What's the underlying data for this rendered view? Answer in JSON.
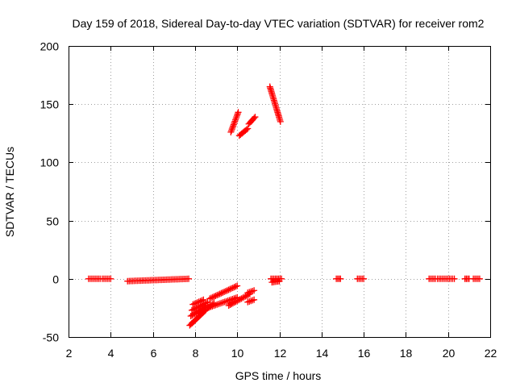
{
  "chart_data": {
    "type": "scatter",
    "title": "Day 159 of 2018, Sidereal Day-to-day VTEC variation (SDTVAR) for receiver rom2",
    "xlabel": "GPS time / hours",
    "ylabel": "SDTVAR / TECUs",
    "xlim": [
      2,
      22
    ],
    "ylim": [
      -50,
      200
    ],
    "xticks": [
      "2",
      "4",
      "6",
      "8",
      "10",
      "12",
      "14",
      "16",
      "18",
      "20",
      "22"
    ],
    "yticks": [
      "-50",
      "0",
      "50",
      "100",
      "150",
      "200"
    ],
    "grid": true,
    "marker": "plus",
    "series_color": "#ff0000",
    "segments": [
      {
        "x0": 2.95,
        "x1": 3.5,
        "y0": 0,
        "y1": 0
      },
      {
        "x0": 3.6,
        "x1": 4.0,
        "y0": 0,
        "y1": 0
      },
      {
        "x0": 4.8,
        "x1": 7.7,
        "y0": -2,
        "y1": 0
      },
      {
        "x0": 7.75,
        "x1": 8.5,
        "y0": -40,
        "y1": -27
      },
      {
        "x0": 7.8,
        "x1": 8.5,
        "y0": -32,
        "y1": -24
      },
      {
        "x0": 7.85,
        "x1": 8.6,
        "y0": -27,
        "y1": -20
      },
      {
        "x0": 7.9,
        "x1": 8.4,
        "y0": -22,
        "y1": -18
      },
      {
        "x0": 8.2,
        "x1": 8.9,
        "y0": -30,
        "y1": -21
      },
      {
        "x0": 8.6,
        "x1": 10.0,
        "y0": -25,
        "y1": -16
      },
      {
        "x0": 8.7,
        "x1": 10.0,
        "y0": -17,
        "y1": -6
      },
      {
        "x0": 9.6,
        "x1": 10.6,
        "y0": -23,
        "y1": -13
      },
      {
        "x0": 10.5,
        "x1": 10.8,
        "y0": -20,
        "y1": -18
      },
      {
        "x0": 10.5,
        "x1": 10.8,
        "y0": -12,
        "y1": -10
      },
      {
        "x0": 9.7,
        "x1": 10.05,
        "y0": 126,
        "y1": 143
      },
      {
        "x0": 10.1,
        "x1": 10.5,
        "y0": 123,
        "y1": 129
      },
      {
        "x0": 10.55,
        "x1": 10.85,
        "y0": 133,
        "y1": 139
      },
      {
        "x0": 11.55,
        "x1": 12.05,
        "y0": 165,
        "y1": 135
      },
      {
        "x0": 11.6,
        "x1": 12.1,
        "y0": 0,
        "y1": 0
      },
      {
        "x0": 11.65,
        "x1": 12.0,
        "y0": -3,
        "y1": -2
      },
      {
        "x0": 14.7,
        "x1": 14.9,
        "y0": 0,
        "y1": 0
      },
      {
        "x0": 15.7,
        "x1": 16.0,
        "y0": 0,
        "y1": 0
      },
      {
        "x0": 19.1,
        "x1": 19.4,
        "y0": 0,
        "y1": 0
      },
      {
        "x0": 19.5,
        "x1": 20.3,
        "y0": 0,
        "y1": 0
      },
      {
        "x0": 20.8,
        "x1": 21.0,
        "y0": 0,
        "y1": 0
      },
      {
        "x0": 21.2,
        "x1": 21.5,
        "y0": 0,
        "y1": 0
      }
    ]
  }
}
